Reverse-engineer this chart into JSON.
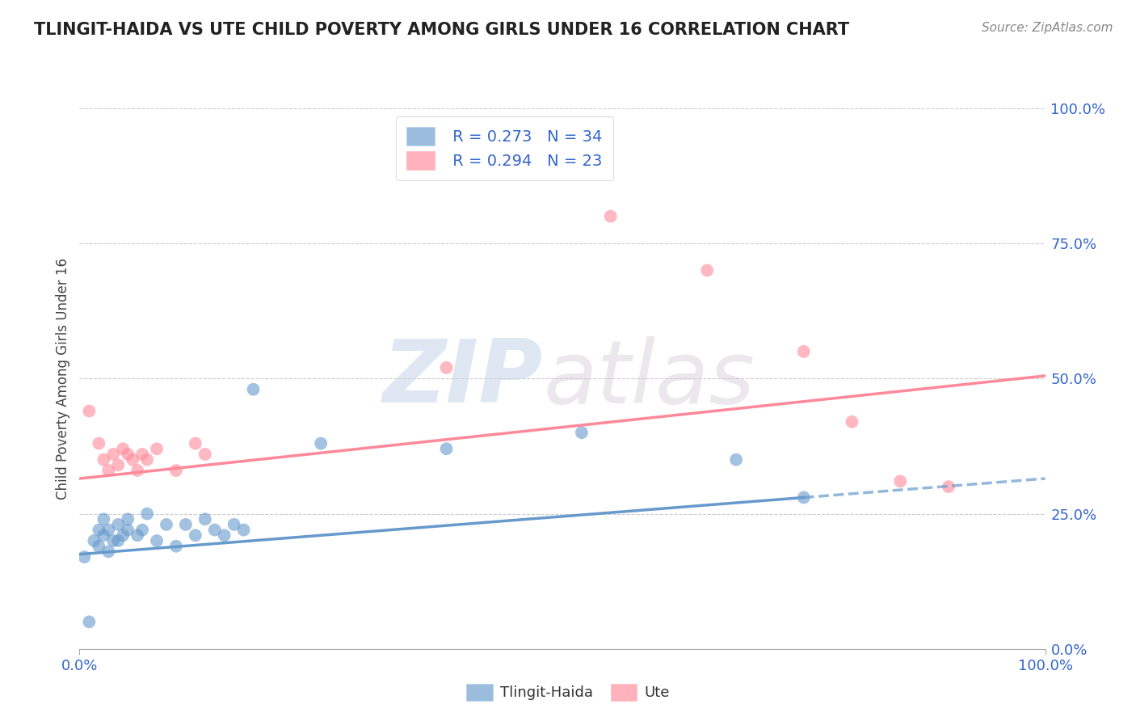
{
  "title": "TLINGIT-HAIDA VS UTE CHILD POVERTY AMONG GIRLS UNDER 16 CORRELATION CHART",
  "source": "Source: ZipAtlas.com",
  "ylabel": "Child Poverty Among Girls Under 16",
  "xlim": [
    0,
    1
  ],
  "ylim": [
    0,
    1
  ],
  "xtick_labels": [
    "0.0%",
    "100.0%"
  ],
  "ytick_labels": [
    "0.0%",
    "25.0%",
    "50.0%",
    "75.0%",
    "100.0%"
  ],
  "ytick_positions": [
    0.0,
    0.25,
    0.5,
    0.75,
    1.0
  ],
  "grid_color": "#cccccc",
  "background_color": "#ffffff",
  "tlingit_color": "#6699cc",
  "ute_color": "#ff8899",
  "tlingit_label": "Tlingit-Haida",
  "ute_label": "Ute",
  "tlingit_R": "0.273",
  "tlingit_N": "34",
  "ute_R": "0.294",
  "ute_N": "23",
  "legend_text_color": "#3366cc",
  "tlingit_x": [
    0.005,
    0.01,
    0.015,
    0.02,
    0.02,
    0.025,
    0.025,
    0.03,
    0.03,
    0.035,
    0.04,
    0.04,
    0.045,
    0.05,
    0.05,
    0.06,
    0.065,
    0.07,
    0.08,
    0.09,
    0.1,
    0.11,
    0.12,
    0.13,
    0.14,
    0.15,
    0.16,
    0.17,
    0.18,
    0.25,
    0.38,
    0.52,
    0.68,
    0.75
  ],
  "tlingit_y": [
    0.17,
    0.05,
    0.2,
    0.19,
    0.22,
    0.21,
    0.24,
    0.18,
    0.22,
    0.2,
    0.2,
    0.23,
    0.21,
    0.22,
    0.24,
    0.21,
    0.22,
    0.25,
    0.2,
    0.23,
    0.19,
    0.23,
    0.21,
    0.24,
    0.22,
    0.21,
    0.23,
    0.22,
    0.48,
    0.38,
    0.37,
    0.4,
    0.35,
    0.28
  ],
  "ute_x": [
    0.01,
    0.02,
    0.025,
    0.03,
    0.035,
    0.04,
    0.045,
    0.05,
    0.055,
    0.06,
    0.065,
    0.07,
    0.08,
    0.1,
    0.12,
    0.13,
    0.38,
    0.55,
    0.65,
    0.75,
    0.8,
    0.85,
    0.9
  ],
  "ute_y": [
    0.44,
    0.38,
    0.35,
    0.33,
    0.36,
    0.34,
    0.37,
    0.36,
    0.35,
    0.33,
    0.36,
    0.35,
    0.37,
    0.33,
    0.38,
    0.36,
    0.52,
    0.8,
    0.7,
    0.55,
    0.42,
    0.31,
    0.3
  ],
  "watermark_zip": "ZIP",
  "watermark_atlas": "atlas",
  "tlingit_line_solid_end": 0.75,
  "tlingit_line_x0": 0.0,
  "tlingit_line_y0": 0.175,
  "tlingit_line_x1": 1.0,
  "tlingit_line_y1": 0.315,
  "ute_line_x0": 0.0,
  "ute_line_y0": 0.315,
  "ute_line_x1": 1.0,
  "ute_line_y1": 0.505
}
